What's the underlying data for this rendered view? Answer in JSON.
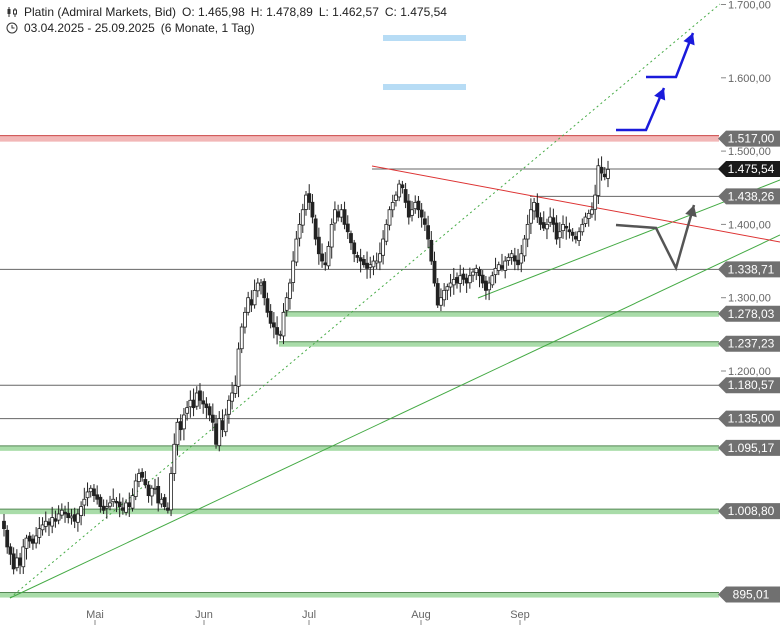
{
  "header": {
    "symbol": "Platin (Admiral Markets, Bid)",
    "o": "O: 1.465,98",
    "h": "H: 1.478,89",
    "l": "L: 1.462,57",
    "c": "C: 1.475,54",
    "range": "03.04.2025 - 25.09.2025",
    "period": "(6 Monate, 1 Tag)"
  },
  "colors": {
    "candle": "#222222",
    "support_band": "#a9dca9",
    "resistance_band": "#f2b7b7",
    "target_box": "#b7dcf5",
    "trend_green": "#44aa44",
    "trend_red": "#dd3333",
    "arrow_blue": "#1a1adb",
    "arrow_grey": "#555555",
    "price_tag": "#707070"
  },
  "chart_data": {
    "type": "candlestick",
    "x_ticks": [
      "Mai",
      "Jun",
      "Jul",
      "Aug",
      "Sep"
    ],
    "y_ticks": [
      "1.200,00",
      "1.300,00",
      "1.400,00",
      "1.500,00",
      "1.600,00",
      "1.700,00"
    ],
    "ylim": [
      875,
      1710
    ],
    "levels": [
      {
        "label": "1.517,00",
        "value": 1517.0,
        "kind": "resistance"
      },
      {
        "label": "1.475,54",
        "value": 1475.54,
        "kind": "current"
      },
      {
        "label": "1.438,26",
        "value": 1438.26,
        "kind": "line"
      },
      {
        "label": "1.338,71",
        "value": 1338.71,
        "kind": "line"
      },
      {
        "label": "1.278,03",
        "value": 1278.03,
        "kind": "support"
      },
      {
        "label": "1.237,23",
        "value": 1237.23,
        "kind": "support"
      },
      {
        "label": "1.180,57",
        "value": 1180.57,
        "kind": "line"
      },
      {
        "label": "1.135,00",
        "value": 1135.0,
        "kind": "line"
      },
      {
        "label": "1.095,17",
        "value": 1095.17,
        "kind": "support"
      },
      {
        "label": "1.008,80",
        "value": 1008.8,
        "kind": "support"
      },
      {
        "label": "895,01",
        "value": 895.01,
        "kind": "support"
      }
    ],
    "ohlc_closes": [
      985,
      960,
      950,
      930,
      945,
      935,
      960,
      972,
      968,
      965,
      975,
      985,
      990,
      995,
      990,
      1000,
      995,
      1005,
      1010,
      1005,
      1000,
      1002,
      995,
      1005,
      1015,
      1025,
      1035,
      1040,
      1030,
      1025,
      1015,
      1010,
      1015,
      1020,
      1025,
      1020,
      1015,
      1010,
      1020,
      1015,
      1030,
      1050,
      1060,
      1055,
      1045,
      1030,
      1040,
      1040,
      1020,
      1025,
      1015,
      1010,
      1060,
      1100,
      1130,
      1120,
      1140,
      1150,
      1160,
      1150,
      1170,
      1160,
      1155,
      1150,
      1140,
      1130,
      1100,
      1135,
      1120,
      1140,
      1160,
      1170,
      1180,
      1230,
      1260,
      1280,
      1300,
      1290,
      1310,
      1320,
      1320,
      1300,
      1280,
      1265,
      1260,
      1250,
      1250,
      1280,
      1300,
      1320,
      1350,
      1380,
      1400,
      1420,
      1440,
      1430,
      1410,
      1380,
      1360,
      1350,
      1345,
      1370,
      1400,
      1420,
      1410,
      1420,
      1400,
      1390,
      1375,
      1360,
      1355,
      1350,
      1345,
      1340,
      1345,
      1350,
      1350,
      1360,
      1380,
      1400,
      1420,
      1430,
      1440,
      1455,
      1450,
      1430,
      1410,
      1420,
      1430,
      1420,
      1410,
      1400,
      1380,
      1350,
      1320,
      1290,
      1300,
      1310,
      1315,
      1320,
      1325,
      1320,
      1330,
      1325,
      1320,
      1330,
      1335,
      1340,
      1330,
      1320,
      1310,
      1320,
      1330,
      1340,
      1345,
      1340,
      1350,
      1355,
      1360,
      1350,
      1345,
      1360,
      1380,
      1400,
      1420,
      1430,
      1410,
      1400,
      1395,
      1400,
      1410,
      1400,
      1380,
      1390,
      1400,
      1395,
      1390,
      1385,
      1380,
      1390,
      1400,
      1410,
      1415,
      1420,
      1440,
      1480,
      1470,
      1465,
      1475
    ]
  }
}
